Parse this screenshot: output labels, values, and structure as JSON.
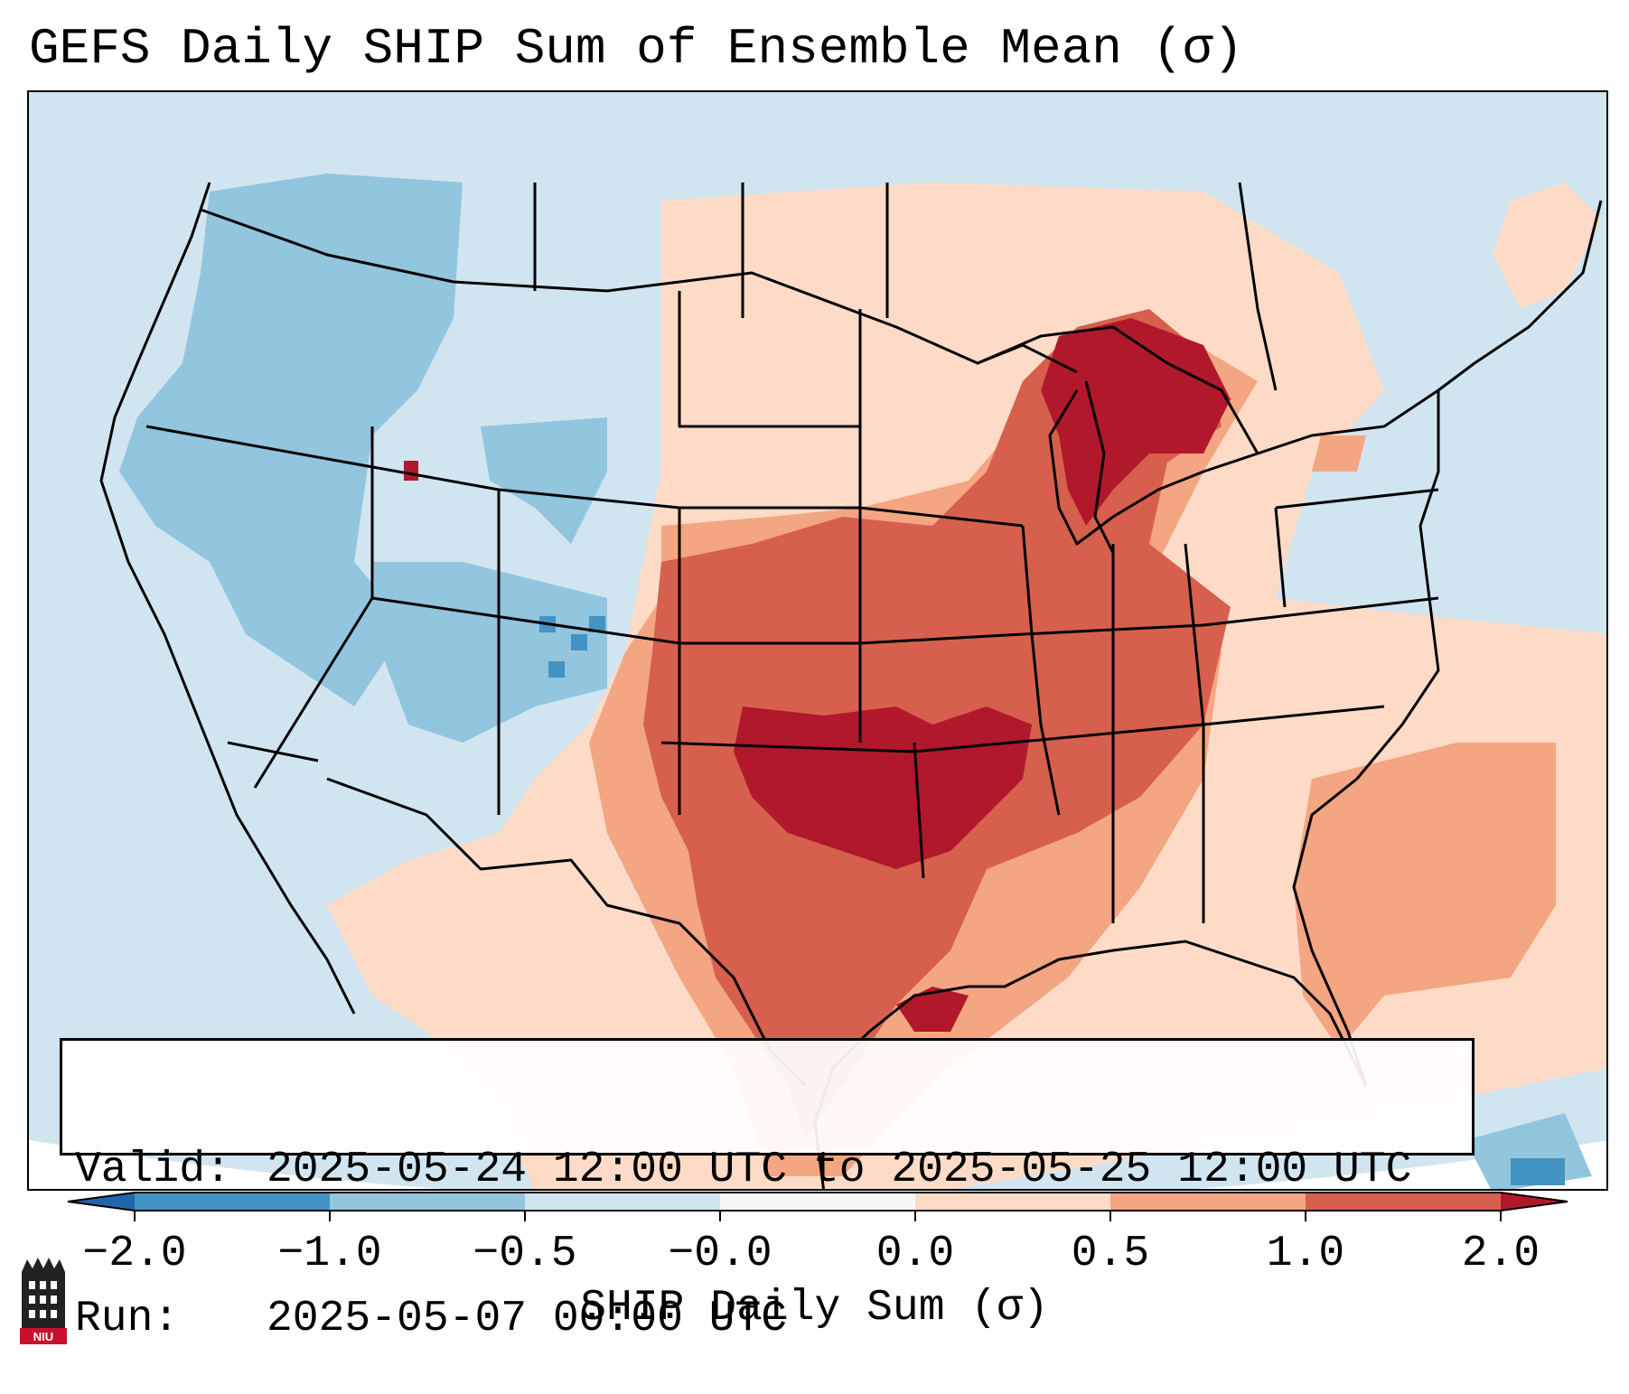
{
  "title": "GEFS Daily SHIP Sum of Ensemble Mean (σ)",
  "info": {
    "valid_label": "Valid:",
    "valid_value": "2025-05-24 12:00 UTC to 2025-05-25 12:00 UTC",
    "run_label": "Run:",
    "run_value": "2025-05-07 00:00 UTC"
  },
  "colorbar": {
    "label": "SHIP Daily Sum (σ)",
    "ticks": [
      "−2.0",
      "−1.0",
      "−0.5",
      "−0.0",
      "0.0",
      "0.5",
      "1.0",
      "2.0"
    ],
    "colors": {
      "below": "#2166ac",
      "c1": "#4393c3",
      "c2": "#92c5de",
      "c3": "#d1e5f0",
      "c4": "#f7f7f7",
      "c5": "#fddbc7",
      "c6": "#f4a582",
      "c7": "#d6604d",
      "above": "#b2182b"
    }
  },
  "logo": {
    "text": "NIU",
    "icon": "niu-logo-icon"
  }
}
